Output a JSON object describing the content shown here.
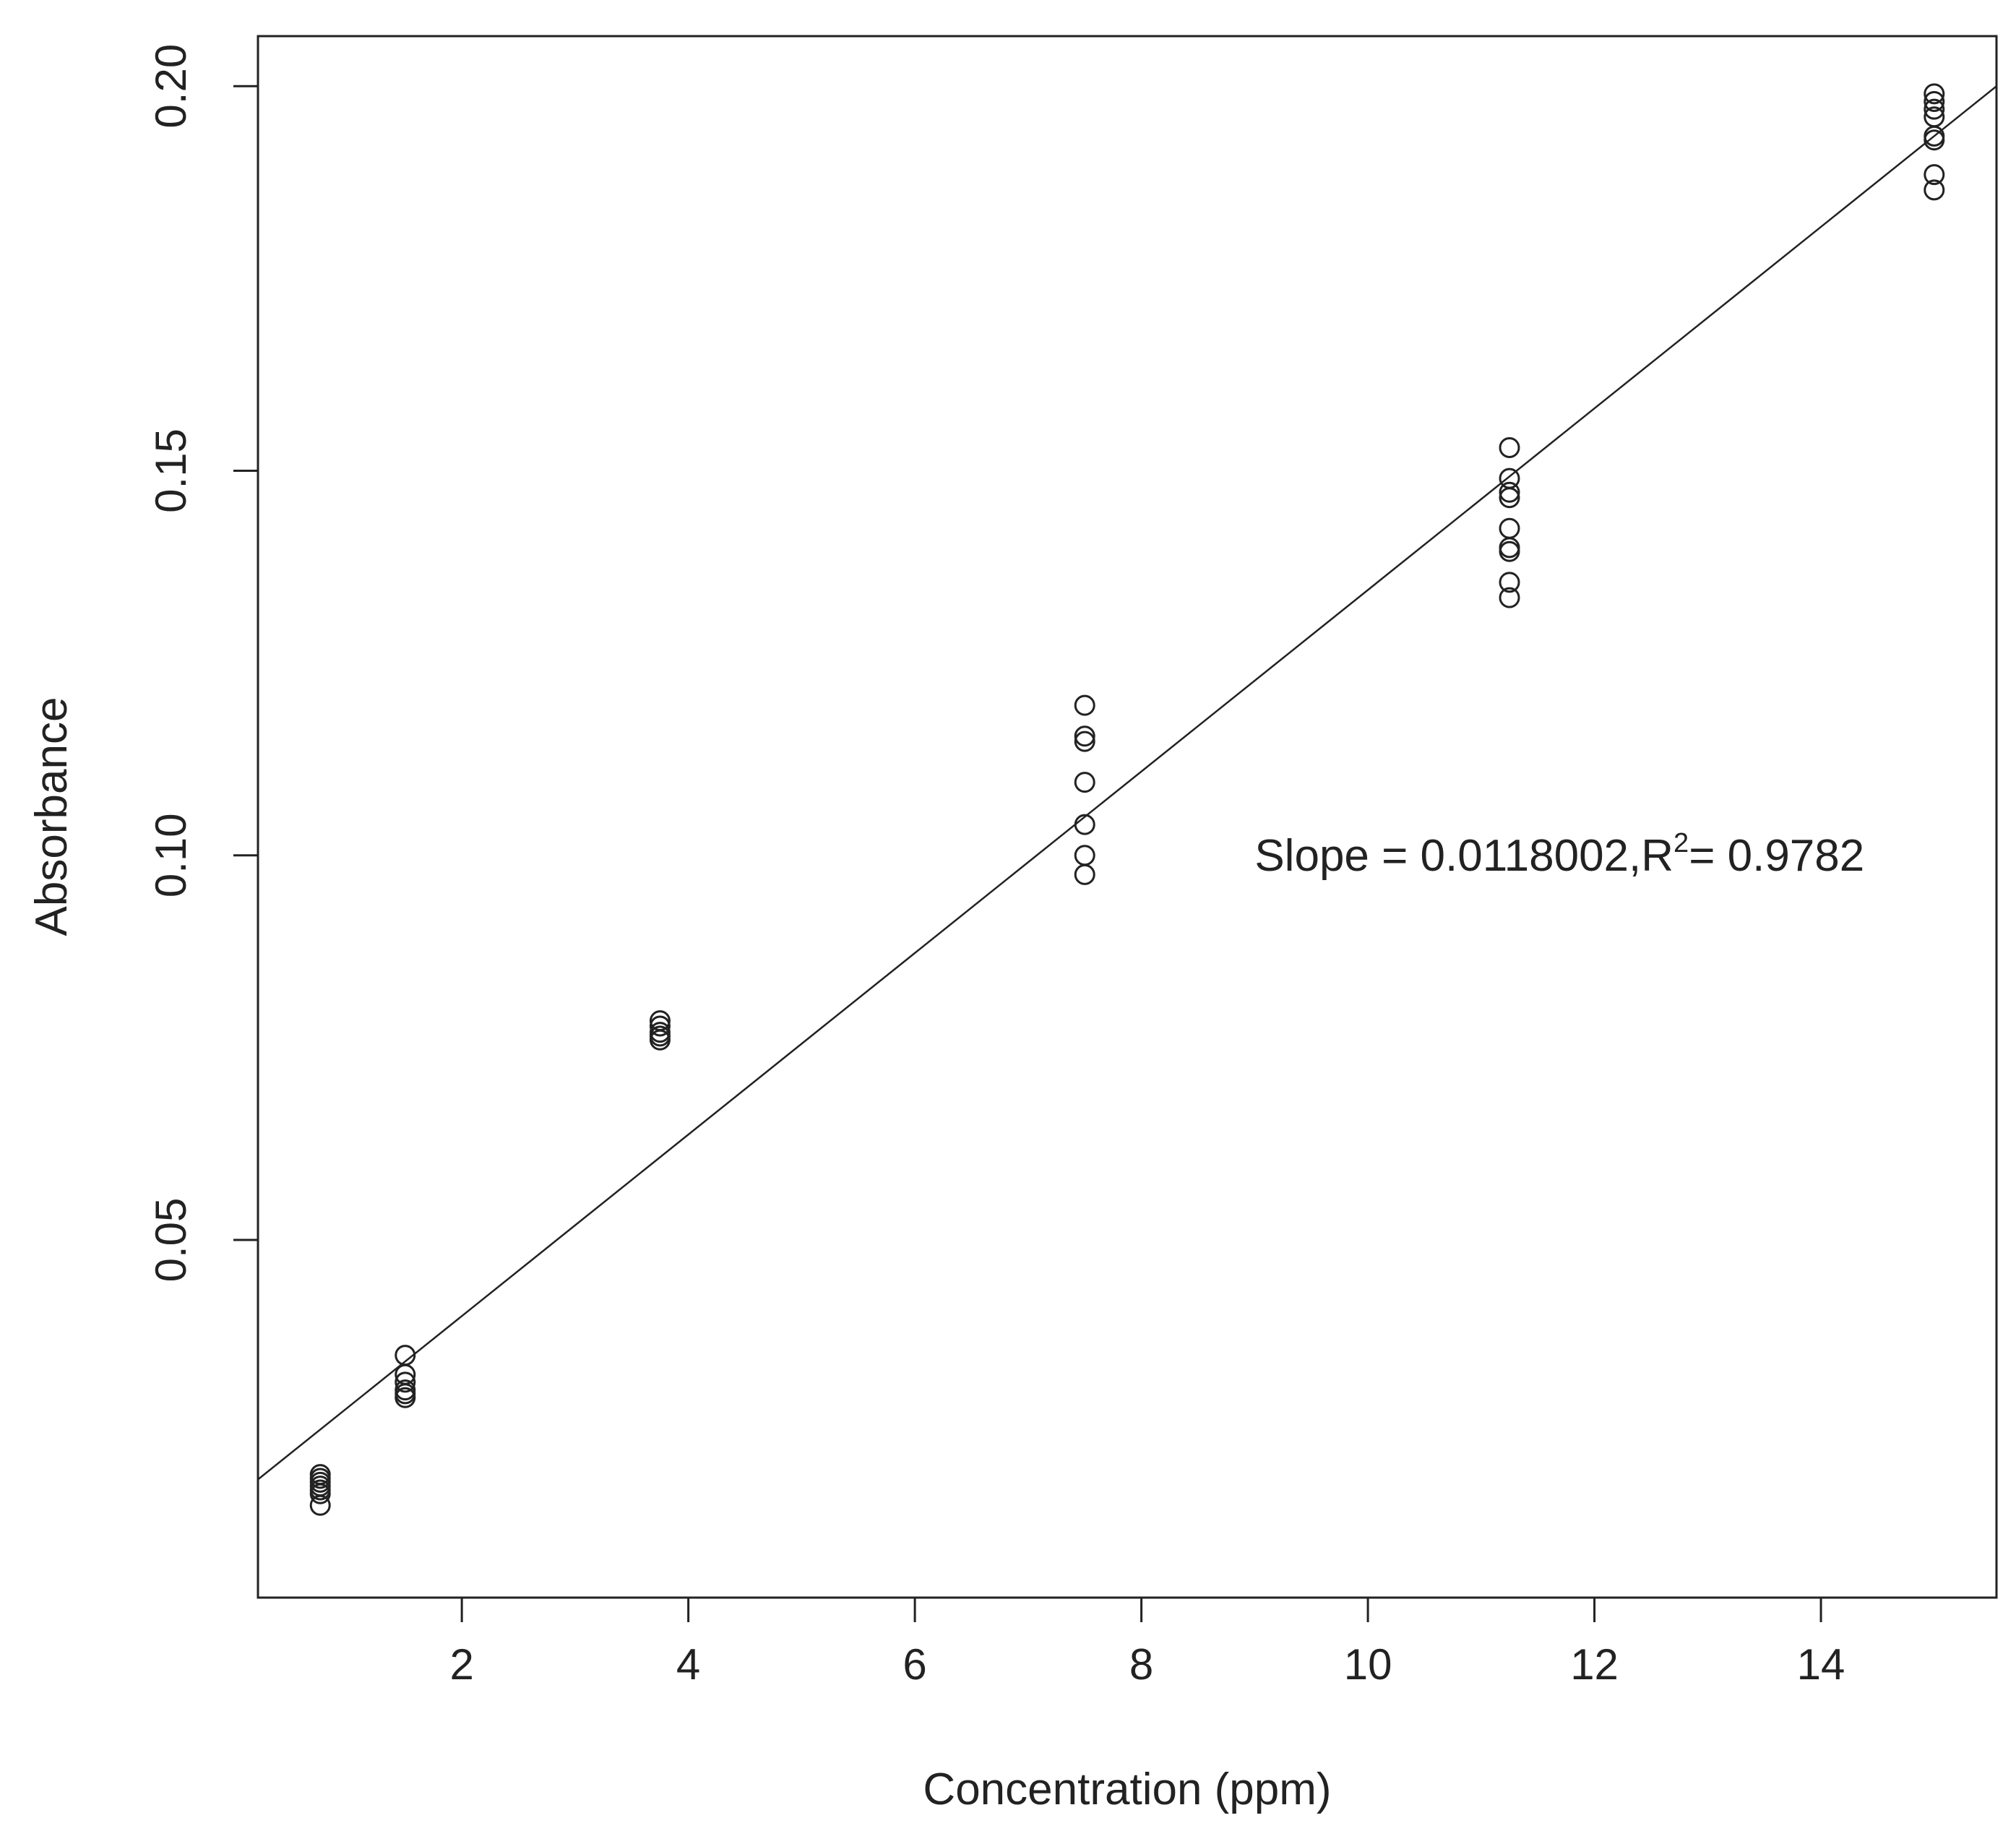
{
  "chart_data": {
    "type": "scatter",
    "title": "",
    "xlabel": "Concentration (ppm)",
    "ylabel": "Absorbance",
    "xlim": [
      0.2,
      15.55
    ],
    "ylim": [
      0.0035,
      0.2065
    ],
    "x_ticks": [
      {
        "value": 2,
        "label": "2"
      },
      {
        "value": 4,
        "label": "4"
      },
      {
        "value": 6,
        "label": "6"
      },
      {
        "value": 8,
        "label": "8"
      },
      {
        "value": 10,
        "label": "10"
      },
      {
        "value": 12,
        "label": "12"
      },
      {
        "value": 14,
        "label": "14"
      }
    ],
    "y_ticks": [
      {
        "value": 0.05,
        "label": "0.05"
      },
      {
        "value": 0.1,
        "label": "0.10"
      },
      {
        "value": 0.15,
        "label": "0.15"
      },
      {
        "value": 0.2,
        "label": "0.20"
      }
    ],
    "grid": false,
    "legend": "none",
    "marker": "open-circle",
    "series": [
      {
        "points": [
          {
            "x": 0.75,
            "y": 0.0195
          },
          {
            "x": 0.75,
            "y": 0.019
          },
          {
            "x": 0.75,
            "y": 0.0185
          },
          {
            "x": 0.75,
            "y": 0.018
          },
          {
            "x": 0.75,
            "y": 0.0175
          },
          {
            "x": 0.75,
            "y": 0.017
          },
          {
            "x": 0.75,
            "y": 0.0155
          },
          {
            "x": 1.5,
            "y": 0.035
          },
          {
            "x": 1.5,
            "y": 0.0325
          },
          {
            "x": 1.5,
            "y": 0.0315
          },
          {
            "x": 1.5,
            "y": 0.0305
          },
          {
            "x": 1.5,
            "y": 0.03
          },
          {
            "x": 1.5,
            "y": 0.0295
          },
          {
            "x": 3.75,
            "y": 0.0785
          },
          {
            "x": 3.75,
            "y": 0.0778
          },
          {
            "x": 3.75,
            "y": 0.077
          },
          {
            "x": 3.75,
            "y": 0.0765
          },
          {
            "x": 3.75,
            "y": 0.076
          },
          {
            "x": 7.5,
            "y": 0.1195
          },
          {
            "x": 7.5,
            "y": 0.1155
          },
          {
            "x": 7.5,
            "y": 0.1148
          },
          {
            "x": 7.5,
            "y": 0.1095
          },
          {
            "x": 7.5,
            "y": 0.104
          },
          {
            "x": 7.5,
            "y": 0.1
          },
          {
            "x": 7.5,
            "y": 0.0975
          },
          {
            "x": 11.25,
            "y": 0.153
          },
          {
            "x": 11.25,
            "y": 0.149
          },
          {
            "x": 11.25,
            "y": 0.1472
          },
          {
            "x": 11.25,
            "y": 0.1465
          },
          {
            "x": 11.25,
            "y": 0.1425
          },
          {
            "x": 11.25,
            "y": 0.14
          },
          {
            "x": 11.25,
            "y": 0.1395
          },
          {
            "x": 11.25,
            "y": 0.1355
          },
          {
            "x": 11.25,
            "y": 0.1335
          },
          {
            "x": 15,
            "y": 0.199
          },
          {
            "x": 15,
            "y": 0.198
          },
          {
            "x": 15,
            "y": 0.197
          },
          {
            "x": 15,
            "y": 0.196
          },
          {
            "x": 15,
            "y": 0.1935
          },
          {
            "x": 15,
            "y": 0.193
          },
          {
            "x": 15,
            "y": 0.1885
          },
          {
            "x": 15,
            "y": 0.1865
          }
        ]
      }
    ],
    "fit_line": {
      "slope": 0.0118002,
      "intercept": 0.0165
    },
    "annotation": {
      "prefix": "Slope = 0.0118002,R",
      "superscript": "2",
      "suffix": "= 0.9782",
      "x": 9,
      "y": 0.098
    }
  }
}
